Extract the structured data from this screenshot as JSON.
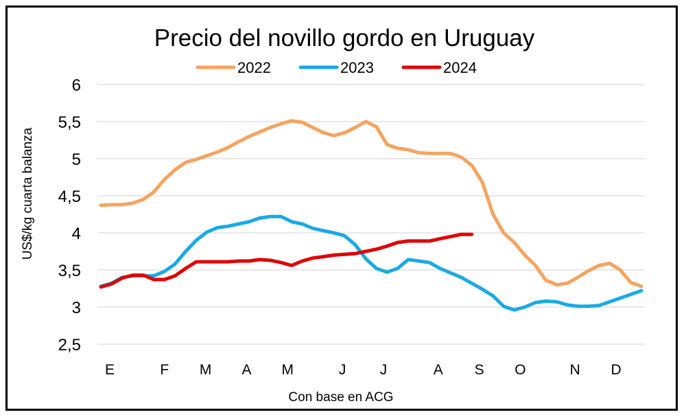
{
  "chart_data": {
    "type": "line",
    "title": "Precio del novillo gordo en Uruguay",
    "ylabel": "US$/kg cuarta balanza",
    "xlabel": "Con base en ACG",
    "ylim": [
      2.5,
      6
    ],
    "yticks": [
      "2,5",
      "3",
      "3,5",
      "4",
      "4,5",
      "5",
      "5,5",
      "6"
    ],
    "ytick_values": [
      2.5,
      3,
      3.5,
      4,
      4.5,
      5,
      5.5,
      6
    ],
    "grid": true,
    "legend_position": "top",
    "x_month_labels": [
      "E",
      "F",
      "M",
      "A",
      "M",
      "J",
      "J",
      "A",
      "S",
      "O",
      "N",
      "D"
    ],
    "x_month_positions": [
      1,
      5,
      8,
      11,
      14,
      18,
      21,
      25,
      28,
      31,
      35,
      38
    ],
    "x_max": 40,
    "series": [
      {
        "name": "2022",
        "color": "#F4A460",
        "values": [
          4.37,
          4.38,
          4.38,
          4.4,
          4.45,
          4.55,
          4.72,
          4.85,
          4.95,
          4.99,
          5.04,
          5.09,
          5.15,
          5.23,
          5.3,
          5.36,
          5.42,
          5.47,
          5.51,
          5.49,
          5.42,
          5.35,
          5.31,
          5.35,
          5.42,
          5.5,
          5.43,
          5.19,
          5.14,
          5.12,
          5.08,
          5.07,
          5.07,
          5.07,
          5.02,
          4.91,
          4.68,
          4.25,
          4.0,
          3.87,
          3.7,
          3.56,
          3.36,
          3.3,
          3.32,
          3.4,
          3.49,
          3.56,
          3.59,
          3.5,
          3.33,
          3.28
        ]
      },
      {
        "name": "2023",
        "color": "#19A9E6",
        "values": [
          3.28,
          3.32,
          3.4,
          3.42,
          3.42,
          3.42,
          3.48,
          3.58,
          3.75,
          3.9,
          4.01,
          4.07,
          4.09,
          4.12,
          4.15,
          4.2,
          4.22,
          4.22,
          4.15,
          4.12,
          4.06,
          4.03,
          4.0,
          3.96,
          3.84,
          3.65,
          3.52,
          3.47,
          3.52,
          3.64,
          3.62,
          3.6,
          3.52,
          3.46,
          3.4,
          3.32,
          3.24,
          3.15,
          3.01,
          2.96,
          3.0,
          3.06,
          3.08,
          3.07,
          3.03,
          3.01,
          3.01,
          3.02,
          3.07,
          3.12,
          3.17,
          3.22
        ]
      },
      {
        "name": "2024",
        "color": "#E00000",
        "values": [
          3.27,
          3.31,
          3.39,
          3.43,
          3.43,
          3.37,
          3.37,
          3.42,
          3.52,
          3.61,
          3.61,
          3.61,
          3.61,
          3.62,
          3.62,
          3.64,
          3.63,
          3.6,
          3.56,
          3.62,
          3.66,
          3.68,
          3.7,
          3.71,
          3.72,
          3.75,
          3.78,
          3.82,
          3.87,
          3.89,
          3.89,
          3.89,
          3.92,
          3.95,
          3.98,
          3.98
        ]
      }
    ]
  }
}
